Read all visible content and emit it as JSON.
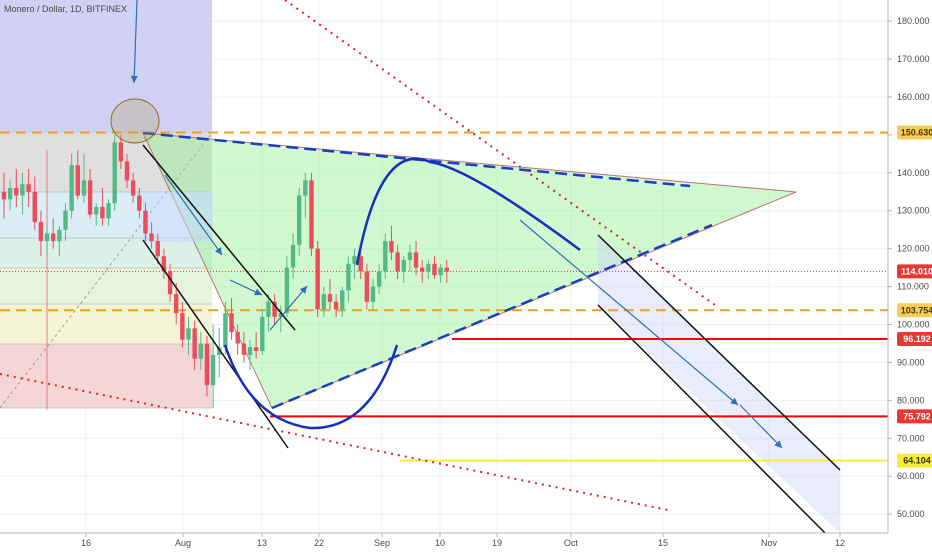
{
  "symbol_title": "Monero / Dollar, 1D, BITFINEX",
  "chart_data": {
    "type": "candlestick",
    "title": "Monero / Dollar, 1D, BITFINEX",
    "y_axis_ticks": [
      "50.000",
      "60.000",
      "70.000",
      "80.000",
      "90.000",
      "100.000",
      "110.000",
      "120.000",
      "130.000",
      "140.000",
      "150.000",
      "160.000",
      "170.000",
      "180.000"
    ],
    "x_axis_ticks": [
      "16",
      "Aug",
      "13",
      "22",
      "Sep",
      "10",
      "19",
      "Oct",
      "15",
      "Nov",
      "12"
    ],
    "price_markers": [
      {
        "label": "150.630",
        "value": 150.63,
        "bg": "#f5ce5a",
        "fg": "#4a3a00"
      },
      {
        "label": "114.010",
        "value": 114.01,
        "bg": "#e53935",
        "fg": "#ffffff"
      },
      {
        "label": "103.754",
        "value": 103.754,
        "bg": "#f5ce5a",
        "fg": "#4a3a00"
      },
      {
        "label": "96.192",
        "value": 96.192,
        "bg": "#e53935",
        "fg": "#ffffff"
      },
      {
        "label": "75.792",
        "value": 75.792,
        "bg": "#e53935",
        "fg": "#ffffff"
      },
      {
        "label": "64.104",
        "value": 64.104,
        "bg": "#f7ef35",
        "fg": "#333300"
      }
    ],
    "horizontal_levels": [
      {
        "value": 150.63,
        "style": "dashed",
        "color": "#f0a020"
      },
      {
        "value": 103.754,
        "style": "dashed",
        "color": "#f0a020"
      },
      {
        "value": 96.192,
        "style": "solid",
        "color": "#ff0000"
      },
      {
        "value": 75.792,
        "style": "solid",
        "color": "#ff0000"
      },
      {
        "value": 64.104,
        "style": "solid",
        "color": "#f7ef35"
      },
      {
        "value": 114.01,
        "style": "dotted",
        "color": "#e53935"
      }
    ],
    "candles": [
      {
        "o": 135,
        "h": 140,
        "l": 128,
        "c": 133
      },
      {
        "o": 133,
        "h": 138,
        "l": 130,
        "c": 136
      },
      {
        "o": 136,
        "h": 141,
        "l": 131,
        "c": 134
      },
      {
        "o": 134,
        "h": 140,
        "l": 129,
        "c": 137
      },
      {
        "o": 137,
        "h": 141,
        "l": 131,
        "c": 135
      },
      {
        "o": 135,
        "h": 139,
        "l": 125,
        "c": 127
      },
      {
        "o": 127,
        "h": 130,
        "l": 118,
        "c": 122
      },
      {
        "o": 122,
        "h": 126,
        "l": 118,
        "c": 124
      },
      {
        "o": 124,
        "h": 128,
        "l": 120,
        "c": 122
      },
      {
        "o": 122,
        "h": 126,
        "l": 118,
        "c": 125
      },
      {
        "o": 125,
        "h": 132,
        "l": 122,
        "c": 130
      },
      {
        "o": 130,
        "h": 145,
        "l": 128,
        "c": 142
      },
      {
        "o": 142,
        "h": 146,
        "l": 133,
        "c": 134
      },
      {
        "o": 134,
        "h": 145,
        "l": 132,
        "c": 138
      },
      {
        "o": 138,
        "h": 141,
        "l": 128,
        "c": 129
      },
      {
        "o": 129,
        "h": 132,
        "l": 126,
        "c": 131
      },
      {
        "o": 131,
        "h": 136,
        "l": 126,
        "c": 128
      },
      {
        "o": 128,
        "h": 133,
        "l": 126,
        "c": 132
      },
      {
        "o": 132,
        "h": 150,
        "l": 130,
        "c": 148
      },
      {
        "o": 148,
        "h": 150,
        "l": 141,
        "c": 143
      },
      {
        "o": 143,
        "h": 145,
        "l": 136,
        "c": 138
      },
      {
        "o": 138,
        "h": 140,
        "l": 132,
        "c": 134
      },
      {
        "o": 134,
        "h": 136,
        "l": 128,
        "c": 130
      },
      {
        "o": 130,
        "h": 132,
        "l": 122,
        "c": 124
      },
      {
        "o": 124,
        "h": 127,
        "l": 120,
        "c": 122
      },
      {
        "o": 122,
        "h": 124,
        "l": 116,
        "c": 118
      },
      {
        "o": 118,
        "h": 120,
        "l": 112,
        "c": 114
      },
      {
        "o": 114,
        "h": 116,
        "l": 106,
        "c": 108
      },
      {
        "o": 108,
        "h": 111,
        "l": 100,
        "c": 103
      },
      {
        "o": 103,
        "h": 106,
        "l": 94,
        "c": 96
      },
      {
        "o": 96,
        "h": 102,
        "l": 92,
        "c": 99
      },
      {
        "o": 99,
        "h": 101,
        "l": 88,
        "c": 91
      },
      {
        "o": 91,
        "h": 98,
        "l": 88,
        "c": 95
      },
      {
        "o": 95,
        "h": 97,
        "l": 81,
        "c": 84
      },
      {
        "o": 84,
        "h": 100,
        "l": 78,
        "c": 92
      },
      {
        "o": 92,
        "h": 99,
        "l": 86,
        "c": 94
      },
      {
        "o": 94,
        "h": 106,
        "l": 92,
        "c": 103
      },
      {
        "o": 103,
        "h": 107,
        "l": 96,
        "c": 98
      },
      {
        "o": 98,
        "h": 100,
        "l": 92,
        "c": 95
      },
      {
        "o": 95,
        "h": 98,
        "l": 90,
        "c": 92
      },
      {
        "o": 92,
        "h": 96,
        "l": 88,
        "c": 94
      },
      {
        "o": 94,
        "h": 98,
        "l": 91,
        "c": 93
      },
      {
        "o": 93,
        "h": 104,
        "l": 92,
        "c": 102
      },
      {
        "o": 102,
        "h": 108,
        "l": 98,
        "c": 106
      },
      {
        "o": 106,
        "h": 108,
        "l": 100,
        "c": 102
      },
      {
        "o": 102,
        "h": 105,
        "l": 98,
        "c": 103
      },
      {
        "o": 103,
        "h": 118,
        "l": 102,
        "c": 115
      },
      {
        "o": 115,
        "h": 124,
        "l": 112,
        "c": 121
      },
      {
        "o": 121,
        "h": 136,
        "l": 118,
        "c": 134
      },
      {
        "o": 134,
        "h": 140,
        "l": 128,
        "c": 138
      },
      {
        "o": 138,
        "h": 140,
        "l": 118,
        "c": 120
      },
      {
        "o": 120,
        "h": 122,
        "l": 102,
        "c": 104
      },
      {
        "o": 104,
        "h": 110,
        "l": 102,
        "c": 108
      },
      {
        "o": 108,
        "h": 112,
        "l": 104,
        "c": 106
      },
      {
        "o": 106,
        "h": 108,
        "l": 102,
        "c": 104
      },
      {
        "o": 104,
        "h": 110,
        "l": 102,
        "c": 109
      },
      {
        "o": 109,
        "h": 118,
        "l": 106,
        "c": 116
      },
      {
        "o": 116,
        "h": 120,
        "l": 112,
        "c": 118
      },
      {
        "o": 118,
        "h": 120,
        "l": 112,
        "c": 114
      },
      {
        "o": 114,
        "h": 116,
        "l": 104,
        "c": 106
      },
      {
        "o": 106,
        "h": 112,
        "l": 104,
        "c": 110
      },
      {
        "o": 110,
        "h": 116,
        "l": 108,
        "c": 114
      },
      {
        "o": 114,
        "h": 124,
        "l": 112,
        "c": 122
      },
      {
        "o": 122,
        "h": 126,
        "l": 117,
        "c": 119
      },
      {
        "o": 119,
        "h": 121,
        "l": 112,
        "c": 114
      },
      {
        "o": 114,
        "h": 118,
        "l": 111,
        "c": 117
      },
      {
        "o": 117,
        "h": 121,
        "l": 114,
        "c": 119
      },
      {
        "o": 119,
        "h": 122,
        "l": 113,
        "c": 115
      },
      {
        "o": 115,
        "h": 117,
        "l": 111,
        "c": 114
      },
      {
        "o": 114,
        "h": 117,
        "l": 112,
        "c": 116
      },
      {
        "o": 116,
        "h": 118,
        "l": 112,
        "c": 113
      },
      {
        "o": 113,
        "h": 116,
        "l": 111,
        "c": 115
      },
      {
        "o": 115,
        "h": 117,
        "l": 111,
        "c": 114
      }
    ]
  }
}
